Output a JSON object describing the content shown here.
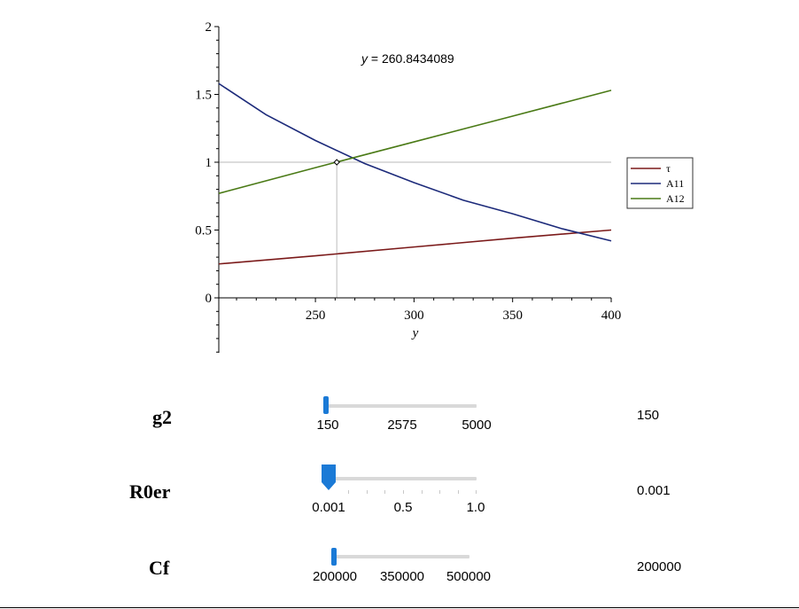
{
  "chart_data": {
    "type": "line",
    "annotation": {
      "var": "y",
      "eq": " = 260.8434089"
    },
    "xlabel": "y",
    "xlim": [
      201,
      400
    ],
    "ylim": [
      -0.4,
      2
    ],
    "x_ticks": [
      250,
      300,
      350,
      400
    ],
    "y_ticks": [
      0,
      0.5,
      1,
      1.5,
      2
    ],
    "marker": {
      "x": 260.8434089,
      "y": 1
    },
    "reference_lines": {
      "horizontal_y": 1,
      "vertical_x": 260.8434089
    },
    "legend_position": "right",
    "series": [
      {
        "name": "τ",
        "color": "#7b1a1a",
        "x": [
          201,
          250,
          300,
          350,
          400
        ],
        "y": [
          0.25,
          0.31,
          0.375,
          0.44,
          0.5
        ]
      },
      {
        "name": "A11",
        "color": "#1c2a7a",
        "x": [
          201,
          225,
          250,
          275,
          300,
          325,
          350,
          375,
          400
        ],
        "y": [
          1.58,
          1.35,
          1.16,
          0.99,
          0.85,
          0.72,
          0.62,
          0.51,
          0.42
        ]
      },
      {
        "name": "A12",
        "color": "#4a7a16",
        "x": [
          201,
          250,
          300,
          350,
          400
        ],
        "y": [
          0.77,
          0.96,
          1.15,
          1.34,
          1.53
        ]
      }
    ]
  },
  "sliders": [
    {
      "label": "g2",
      "value": "150",
      "ticks": [
        "150",
        "2575",
        "5000"
      ]
    },
    {
      "label": "R0er",
      "value": "0.001",
      "ticks": [
        "0.001",
        "0.5",
        "1.0"
      ]
    },
    {
      "label": "Cf",
      "value": "200000",
      "ticks": [
        "200000",
        "350000",
        "500000"
      ]
    }
  ]
}
